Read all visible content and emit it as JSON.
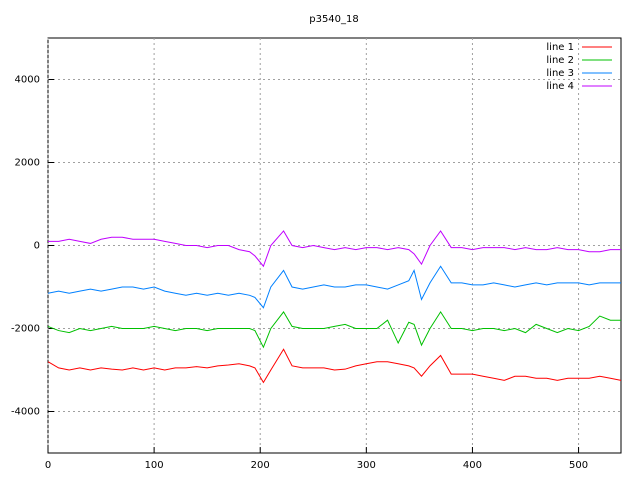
{
  "chart_data": {
    "type": "line",
    "title": "p3540_18",
    "x": [
      0,
      10,
      20,
      30,
      40,
      50,
      60,
      70,
      80,
      90,
      100,
      110,
      120,
      130,
      140,
      150,
      160,
      170,
      180,
      190,
      195,
      203,
      210,
      222,
      230,
      240,
      250,
      260,
      270,
      280,
      290,
      300,
      310,
      320,
      330,
      340,
      345,
      352,
      360,
      370,
      380,
      390,
      400,
      410,
      420,
      430,
      440,
      450,
      460,
      470,
      480,
      490,
      500,
      510,
      520,
      530,
      540
    ],
    "series": [
      {
        "name": "line 1",
        "color": "#ff0000",
        "values": [
          -2800,
          -2950,
          -3000,
          -2950,
          -3000,
          -2950,
          -2980,
          -3000,
          -2950,
          -3000,
          -2950,
          -3000,
          -2950,
          -2950,
          -2920,
          -2950,
          -2900,
          -2880,
          -2850,
          -2900,
          -2950,
          -3300,
          -3000,
          -2500,
          -2900,
          -2950,
          -2950,
          -2950,
          -3000,
          -2980,
          -2900,
          -2850,
          -2800,
          -2800,
          -2850,
          -2900,
          -2950,
          -3150,
          -2900,
          -2650,
          -3100,
          -3100,
          -3100,
          -3150,
          -3200,
          -3250,
          -3150,
          -3150,
          -3200,
          -3200,
          -3250,
          -3200,
          -3200,
          -3200,
          -3150,
          -3200,
          -3250
        ]
      },
      {
        "name": "line 2",
        "color": "#00c000",
        "values": [
          -1950,
          -2050,
          -2100,
          -2000,
          -2050,
          -2000,
          -1950,
          -2000,
          -2000,
          -2000,
          -1950,
          -2000,
          -2050,
          -2000,
          -2000,
          -2050,
          -2000,
          -2000,
          -2000,
          -2000,
          -2050,
          -2450,
          -2000,
          -1600,
          -1950,
          -2000,
          -2000,
          -2000,
          -1950,
          -1900,
          -2000,
          -2000,
          -2000,
          -1800,
          -2350,
          -1850,
          -1900,
          -2400,
          -2000,
          -1600,
          -2000,
          -2000,
          -2050,
          -2000,
          -2000,
          -2050,
          -2000,
          -2100,
          -1900,
          -2000,
          -2100,
          -2000,
          -2050,
          -1950,
          -1700,
          -1800,
          -1800
        ]
      },
      {
        "name": "line 3",
        "color": "#0080ff",
        "values": [
          -1150,
          -1100,
          -1150,
          -1100,
          -1050,
          -1100,
          -1050,
          -1000,
          -1000,
          -1050,
          -1000,
          -1100,
          -1150,
          -1200,
          -1150,
          -1200,
          -1150,
          -1200,
          -1150,
          -1200,
          -1250,
          -1500,
          -1000,
          -600,
          -1000,
          -1050,
          -1000,
          -950,
          -1000,
          -1000,
          -950,
          -950,
          -1000,
          -1050,
          -950,
          -850,
          -600,
          -1300,
          -900,
          -500,
          -900,
          -900,
          -950,
          -950,
          -900,
          -950,
          -1000,
          -950,
          -900,
          -950,
          -900,
          -900,
          -900,
          -950,
          -900,
          -900,
          -900
        ]
      },
      {
        "name": "line 4",
        "color": "#c000ff",
        "values": [
          100,
          100,
          150,
          100,
          50,
          150,
          200,
          200,
          150,
          150,
          150,
          100,
          50,
          0,
          0,
          -50,
          0,
          0,
          -100,
          -150,
          -250,
          -500,
          0,
          350,
          0,
          -50,
          0,
          -50,
          -100,
          -50,
          -100,
          -50,
          -50,
          -100,
          -50,
          -100,
          -200,
          -450,
          0,
          350,
          -50,
          -50,
          -100,
          -50,
          -50,
          -50,
          -100,
          -50,
          -100,
          -100,
          -50,
          -100,
          -100,
          -150,
          -150,
          -100,
          -100
        ]
      }
    ],
    "xlim": [
      0,
      540
    ],
    "ylim": [
      -5000,
      5000
    ],
    "xticks": [
      0,
      100,
      200,
      300,
      400,
      500
    ],
    "yticks": [
      -4000,
      -2000,
      0,
      2000,
      4000
    ],
    "grid": true,
    "legend": "top-right"
  }
}
